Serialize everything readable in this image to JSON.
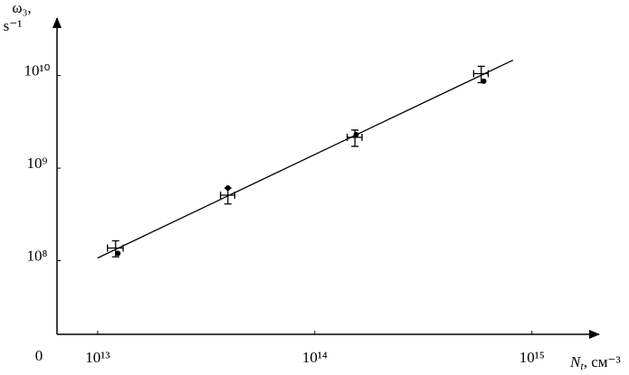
{
  "chart_data": {
    "type": "scatter",
    "log_x": true,
    "log_y": true,
    "ylabel": [
      "ω₃,",
      "s⁻¹"
    ],
    "xlabel": {
      "symbol": "N",
      "subscript": "t",
      "unit": ", см⁻³"
    },
    "origin_label": "0",
    "xlim": [
      6500000000000.0,
      2000000000000000.0
    ],
    "ylim": [
      16000000.0,
      40000000000.0
    ],
    "xticks": [
      {
        "value": 10000000000000.0,
        "label": "10¹³"
      },
      {
        "value": 100000000000000.0,
        "label": "10¹⁴"
      },
      {
        "value": 1000000000000000.0,
        "label": "10¹⁵"
      }
    ],
    "yticks": [
      {
        "value": 100000000.0,
        "label": "10⁸"
      },
      {
        "value": 1000000000.0,
        "label": "10⁹"
      },
      {
        "value": 10000000000.0,
        "label": "10¹⁰"
      }
    ],
    "series": [
      {
        "marker": "errorbar",
        "color": "#000000",
        "x": [
          12100000000000.0,
          39800000000000.0,
          153000000000000.0,
          584000000000000.0
        ],
        "values": [
          137000000.0,
          510000000.0,
          2150000000.0,
          10500000000.0
        ],
        "xerr": [
          1000000000000.0,
          3000000000000.0,
          12000000000000.0,
          45000000000000.0
        ],
        "yerr": [
          27000000.0,
          100000000.0,
          430000000.0,
          2100000000.0
        ]
      },
      {
        "marker": "dot",
        "color": "#000000",
        "x": [
          12400000000000.0,
          39800000000000.0,
          155000000000000.0,
          600000000000000.0
        ],
        "values": [
          120000000.0,
          610000000.0,
          2300000000.0,
          8700000000.0
        ]
      },
      {
        "marker": "line",
        "color": "#000000",
        "x": [
          10000000000000.0,
          818000000000000.0
        ],
        "values": [
          107000000.0,
          14700000000.0
        ]
      }
    ]
  }
}
